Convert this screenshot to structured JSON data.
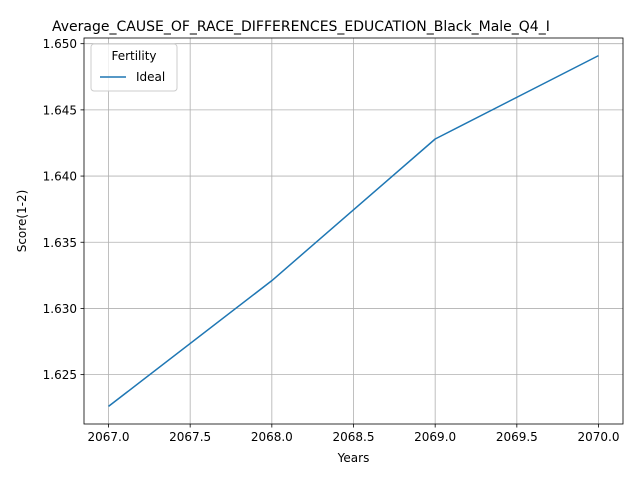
{
  "chart_data": {
    "type": "line",
    "title": "Average_CAUSE_OF_RACE_DIFFERENCES_EDUCATION_Black_Male_Q4_I",
    "xlabel": "Years",
    "ylabel": "Score(1-2)",
    "x": [
      2067,
      2068,
      2069,
      2070
    ],
    "series": [
      {
        "name": "Ideal",
        "values": [
          1.6226,
          1.6321,
          1.6428,
          1.6491
        ],
        "color": "#1f77b4"
      }
    ],
    "xlim": [
      2066.85,
      2070.15
    ],
    "ylim": [
      1.62127,
      1.65043
    ],
    "x_ticks": [
      2067.0,
      2067.5,
      2068.0,
      2068.5,
      2069.0,
      2069.5,
      2070.0
    ],
    "x_tick_labels": [
      "2067.0",
      "2067.5",
      "2068.0",
      "2068.5",
      "2069.0",
      "2069.5",
      "2070.0"
    ],
    "y_ticks": [
      1.625,
      1.63,
      1.635,
      1.64,
      1.645,
      1.65
    ],
    "y_tick_labels": [
      "1.625",
      "1.630",
      "1.635",
      "1.640",
      "1.645",
      "1.650"
    ],
    "grid": true,
    "legend": {
      "title": "Fertility",
      "placement": "upper-left"
    }
  }
}
